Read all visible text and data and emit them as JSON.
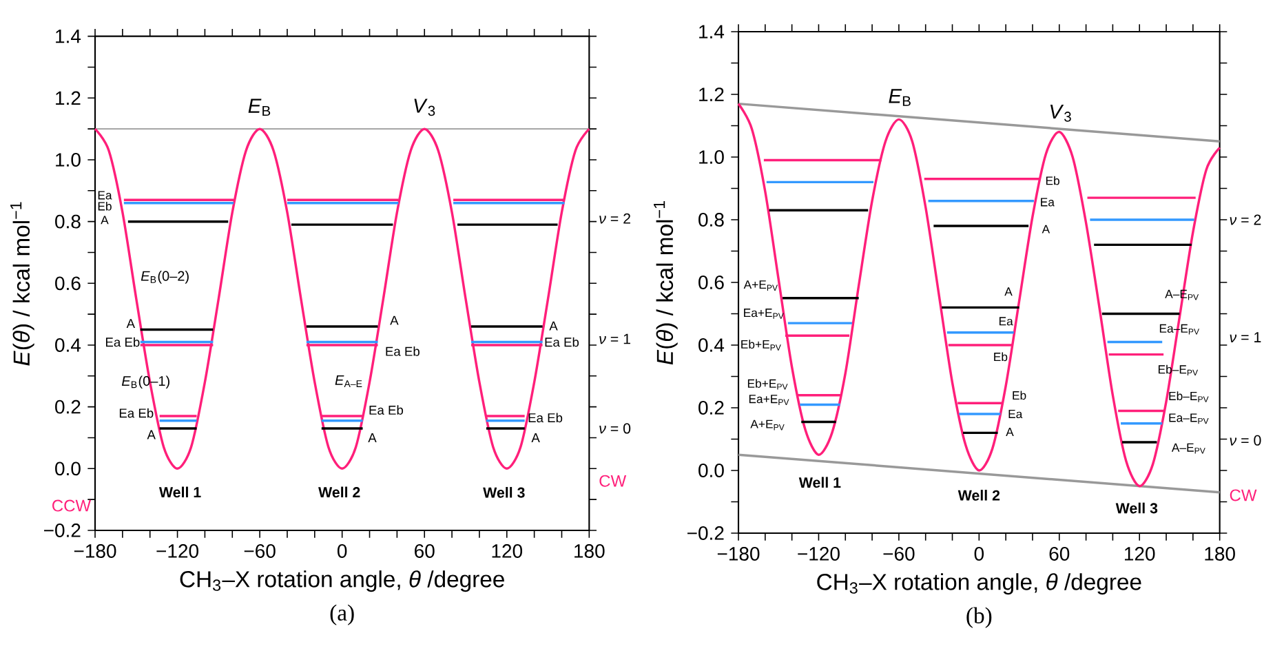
{
  "chart_data": [
    {
      "type": "line",
      "title": "(a)",
      "xlabel": "CH$_{3}$–X rotation angle, *θ* /degree",
      "ylabel": "*E*(*θ*) / kcal mol$^{−1}$",
      "marker": "none",
      "line_style": "solid",
      "xlim": [
        -180,
        180
      ],
      "ylim": [
        -0.2,
        1.4
      ],
      "xticks": [
        {
          "value": -180,
          "label": "−180"
        },
        {
          "value": -160,
          "label": null
        },
        {
          "value": -140,
          "label": null
        },
        {
          "value": -120,
          "label": "−120"
        },
        {
          "value": -100,
          "label": null
        },
        {
          "value": -80,
          "label": null
        },
        {
          "value": -60,
          "label": "−60"
        },
        {
          "value": -40,
          "label": null
        },
        {
          "value": -20,
          "label": null
        },
        0,
        {
          "value": 20,
          "label": null
        },
        {
          "value": 40,
          "label": null
        },
        60,
        {
          "value": 80,
          "label": null
        },
        {
          "value": 100,
          "label": null
        },
        120,
        {
          "value": 140,
          "label": null
        },
        {
          "value": 160,
          "label": null
        },
        180
      ],
      "yticks": [
        {
          "value": -0.2,
          "label": "−0.2"
        },
        {
          "value": -0.1,
          "label": null
        },
        {
          "value": 0,
          "label": "0.0"
        },
        {
          "value": 0.1,
          "label": null
        },
        0.2,
        {
          "value": 0.3,
          "label": null
        },
        0.4,
        {
          "value": 0.5,
          "label": null
        },
        0.6,
        {
          "value": 0.7,
          "label": null
        },
        0.8,
        {
          "value": 0.9,
          "label": null
        },
        {
          "value": 1,
          "label": "1.0"
        },
        {
          "value": 1.1,
          "label": null
        },
        1.2,
        {
          "value": 1.3,
          "label": null
        },
        1.4
      ],
      "ref_lines": [
        {
          "axis": "y",
          "value": 1.1,
          "color": "#999999"
        }
      ],
      "series": [
        {
          "color": "#ff1f7a",
          "x": [
            -180,
            -170,
            -160,
            -150,
            -140,
            -130,
            -120,
            -110,
            -100,
            -90,
            -80,
            -70,
            -60,
            -50,
            -40,
            -30,
            -20,
            -10,
            0,
            10,
            20,
            30,
            40,
            50,
            60,
            70,
            80,
            90,
            100,
            110,
            120,
            130,
            140,
            150,
            160,
            170,
            180
          ],
          "values": [
            1.1,
            1.03,
            0.83,
            0.55,
            0.28,
            0.07,
            0,
            0.07,
            0.28,
            0.55,
            0.83,
            1.03,
            1.1,
            1.03,
            0.83,
            0.55,
            0.28,
            0.07,
            0,
            0.07,
            0.28,
            0.55,
            0.83,
            1.03,
            1.1,
            1.03,
            0.83,
            0.55,
            0.28,
            0.07,
            0,
            0.07,
            0.28,
            0.55,
            0.83,
            1.03,
            1.1
          ]
        },
        {
          "color": "#3399ff",
          "x": [
            -159,
            -79
          ],
          "values": [
            0.86,
            0.86
          ]
        },
        {
          "color": "#ff1f7a",
          "x": [
            -159,
            -79
          ],
          "values": [
            0.87,
            0.87
          ]
        },
        {
          "color": "#000000",
          "x": [
            -156,
            -83
          ],
          "values": [
            0.8,
            0.8
          ]
        },
        {
          "color": "#3399ff",
          "x": [
            -40,
            41
          ],
          "values": [
            0.86,
            0.86
          ]
        },
        {
          "color": "#ff1f7a",
          "x": [
            -40,
            41
          ],
          "values": [
            0.87,
            0.87
          ]
        },
        {
          "color": "#000000",
          "x": [
            -37,
            37
          ],
          "values": [
            0.79,
            0.79
          ]
        },
        {
          "color": "#3399ff",
          "x": [
            81,
            162
          ],
          "values": [
            0.86,
            0.86
          ]
        },
        {
          "color": "#ff1f7a",
          "x": [
            81,
            162
          ],
          "values": [
            0.87,
            0.87
          ]
        },
        {
          "color": "#000000",
          "x": [
            84,
            157
          ],
          "values": [
            0.79,
            0.79
          ]
        },
        {
          "color": "#000000",
          "x": [
            -147,
            -94
          ],
          "values": [
            0.45,
            0.45
          ]
        },
        {
          "color": "#3399ff",
          "x": [
            -147,
            -94
          ],
          "values": [
            0.41,
            0.41
          ]
        },
        {
          "color": "#ff1f7a",
          "x": [
            -147,
            -94
          ],
          "values": [
            0.4,
            0.4
          ]
        },
        {
          "color": "#000000",
          "x": [
            -26,
            26
          ],
          "values": [
            0.46,
            0.46
          ]
        },
        {
          "color": "#3399ff",
          "x": [
            -26,
            26
          ],
          "values": [
            0.41,
            0.41
          ]
        },
        {
          "color": "#ff1f7a",
          "x": [
            -26,
            26
          ],
          "values": [
            0.4,
            0.4
          ]
        },
        {
          "color": "#000000",
          "x": [
            94,
            146
          ],
          "values": [
            0.46,
            0.46
          ]
        },
        {
          "color": "#3399ff",
          "x": [
            94,
            146
          ],
          "values": [
            0.41,
            0.41
          ]
        },
        {
          "color": "#ff1f7a",
          "x": [
            94,
            146
          ],
          "values": [
            0.4,
            0.4
          ]
        },
        {
          "color": "#ff1f7a",
          "x": [
            -133,
            -106
          ],
          "values": [
            0.17,
            0.17
          ]
        },
        {
          "color": "#3399ff",
          "x": [
            -133,
            -106
          ],
          "values": [
            0.155,
            0.155
          ]
        },
        {
          "color": "#000000",
          "x": [
            -133,
            -106
          ],
          "values": [
            0.13,
            0.13
          ]
        },
        {
          "color": "#ff1f7a",
          "x": [
            -15,
            15
          ],
          "values": [
            0.17,
            0.17
          ]
        },
        {
          "color": "#3399ff",
          "x": [
            -15,
            15
          ],
          "values": [
            0.155,
            0.155
          ]
        },
        {
          "color": "#000000",
          "x": [
            -15,
            15
          ],
          "values": [
            0.13,
            0.13
          ]
        },
        {
          "color": "#ff1f7a",
          "x": [
            105,
            133
          ],
          "values": [
            0.17,
            0.17
          ]
        },
        {
          "color": "#3399ff",
          "x": [
            105,
            133
          ],
          "values": [
            0.155,
            0.155
          ]
        },
        {
          "color": "#000000",
          "x": [
            105,
            133
          ],
          "values": [
            0.13,
            0.13
          ]
        }
      ],
      "annotations": [
        "*E*$_{B}$",
        "*V*$_{3}$",
        "Ea",
        "Eb",
        "A",
        "*E*$_{B}$(0–2)",
        "A",
        "Ea Eb",
        "*E*$_{B}$(0–1)",
        "Ea Eb",
        "A",
        "A",
        "Ea Eb",
        "*E*$_{A–E}$",
        "Ea Eb",
        "A",
        "A",
        "Ea Eb",
        "Ea Eb",
        "A",
        "*ν* = 2",
        "*ν* = 1",
        "*ν* = 0",
        "CW",
        "CCW",
        "**Well 1**",
        "**Well 2**",
        "**Well 3**"
      ]
    },
    {
      "type": "line",
      "title": "(b)",
      "xlabel": "CH$_{3}$–X rotation angle, *θ* /degree",
      "ylabel": "*E*(*θ*) / kcal mol$^{−1}$",
      "marker": "none",
      "line_style": "solid",
      "xlim": [
        -180,
        180
      ],
      "ylim": [
        -0.2,
        1.4
      ],
      "xticks": [
        {
          "value": -180,
          "label": "−180"
        },
        {
          "value": -160,
          "label": null
        },
        {
          "value": -140,
          "label": null
        },
        {
          "value": -120,
          "label": "−120"
        },
        {
          "value": -100,
          "label": null
        },
        {
          "value": -80,
          "label": null
        },
        {
          "value": -60,
          "label": "−60"
        },
        {
          "value": -40,
          "label": null
        },
        {
          "value": -20,
          "label": null
        },
        0,
        {
          "value": 20,
          "label": null
        },
        {
          "value": 40,
          "label": null
        },
        60,
        {
          "value": 80,
          "label": null
        },
        {
          "value": 100,
          "label": null
        },
        120,
        {
          "value": 140,
          "label": null
        },
        {
          "value": 160,
          "label": null
        },
        180
      ],
      "yticks": [
        {
          "value": -0.2,
          "label": "−0.2"
        },
        {
          "value": -0.1,
          "label": null
        },
        {
          "value": 0,
          "label": "0.0"
        },
        {
          "value": 0.1,
          "label": null
        },
        0.2,
        {
          "value": 0.3,
          "label": null
        },
        0.4,
        {
          "value": 0.5,
          "label": null
        },
        0.6,
        {
          "value": 0.7,
          "label": null
        },
        0.8,
        {
          "value": 0.9,
          "label": null
        },
        {
          "value": 1,
          "label": "1.0"
        },
        {
          "value": 1.1,
          "label": null
        },
        1.2,
        {
          "value": 1.3,
          "label": null
        },
        1.4
      ],
      "series": [
        {
          "color": "#999999",
          "x": [
            -180,
            180
          ],
          "values": [
            1.17,
            1.05
          ]
        },
        {
          "color": "#999999",
          "x": [
            -180,
            180
          ],
          "values": [
            0.05,
            -0.07
          ]
        },
        {
          "color": "#ff1f7a",
          "x": [
            -180,
            -170,
            -160,
            -150,
            -140,
            -130,
            -120,
            -110,
            -100,
            -90,
            -80,
            -70,
            -60,
            -50,
            -40,
            -30,
            -20,
            -10,
            0,
            10,
            20,
            30,
            40,
            50,
            60,
            70,
            80,
            90,
            100,
            110,
            120,
            130,
            140,
            150,
            160,
            170,
            180
          ],
          "values": [
            1.17,
            1.09,
            0.89,
            0.61,
            0.33,
            0.13,
            0.05,
            0.12,
            0.31,
            0.59,
            0.86,
            1.05,
            1.12,
            1.05,
            0.84,
            0.56,
            0.28,
            0.08,
            0,
            0.07,
            0.27,
            0.54,
            0.81,
            1.01,
            1.08,
            1,
            0.79,
            0.52,
            0.24,
            0.03,
            -0.05,
            0.02,
            0.22,
            0.49,
            0.76,
            0.96,
            1.03
          ]
        },
        {
          "color": "#ff1f7a",
          "x": [
            -161,
            -73
          ],
          "values": [
            0.99,
            0.99
          ]
        },
        {
          "color": "#3399ff",
          "x": [
            -159,
            -79
          ],
          "values": [
            0.92,
            0.92
          ]
        },
        {
          "color": "#000000",
          "x": [
            -157,
            -83
          ],
          "values": [
            0.83,
            0.83
          ]
        },
        {
          "color": "#ff1f7a",
          "x": [
            -41,
            45
          ],
          "values": [
            0.93,
            0.93
          ]
        },
        {
          "color": "#3399ff",
          "x": [
            -38,
            41
          ],
          "values": [
            0.86,
            0.86
          ]
        },
        {
          "color": "#000000",
          "x": [
            -34,
            37
          ],
          "values": [
            0.78,
            0.78
          ]
        },
        {
          "color": "#ff1f7a",
          "x": [
            81,
            162
          ],
          "values": [
            0.87,
            0.87
          ]
        },
        {
          "color": "#3399ff",
          "x": [
            83,
            161
          ],
          "values": [
            0.8,
            0.8
          ]
        },
        {
          "color": "#000000",
          "x": [
            86,
            159
          ],
          "values": [
            0.72,
            0.72
          ]
        },
        {
          "color": "#000000",
          "x": [
            -147,
            -90
          ],
          "values": [
            0.55,
            0.55
          ]
        },
        {
          "color": "#3399ff",
          "x": [
            -143,
            -95
          ],
          "values": [
            0.47,
            0.47
          ]
        },
        {
          "color": "#ff1f7a",
          "x": [
            -145,
            -97
          ],
          "values": [
            0.43,
            0.43
          ]
        },
        {
          "color": "#000000",
          "x": [
            -28,
            30
          ],
          "values": [
            0.52,
            0.52
          ]
        },
        {
          "color": "#3399ff",
          "x": [
            -24,
            26
          ],
          "values": [
            0.44,
            0.44
          ]
        },
        {
          "color": "#ff1f7a",
          "x": [
            -23,
            25
          ],
          "values": [
            0.4,
            0.4
          ]
        },
        {
          "color": "#000000",
          "x": [
            92,
            150
          ],
          "values": [
            0.5,
            0.5
          ]
        },
        {
          "color": "#3399ff",
          "x": [
            96,
            137
          ],
          "values": [
            0.41,
            0.41
          ]
        },
        {
          "color": "#ff1f7a",
          "x": [
            97,
            138
          ],
          "values": [
            0.37,
            0.37
          ]
        },
        {
          "color": "#ff1f7a",
          "x": [
            -136,
            -103
          ],
          "values": [
            0.24,
            0.24
          ]
        },
        {
          "color": "#3399ff",
          "x": [
            -134,
            -104
          ],
          "values": [
            0.21,
            0.21
          ]
        },
        {
          "color": "#000000",
          "x": [
            -133,
            -107
          ],
          "values": [
            0.155,
            0.155
          ]
        },
        {
          "color": "#ff1f7a",
          "x": [
            -16,
            17
          ],
          "values": [
            0.215,
            0.215
          ]
        },
        {
          "color": "#3399ff",
          "x": [
            -15,
            16
          ],
          "values": [
            0.18,
            0.18
          ]
        },
        {
          "color": "#000000",
          "x": [
            -12,
            14
          ],
          "values": [
            0.12,
            0.12
          ]
        },
        {
          "color": "#ff1f7a",
          "x": [
            104,
            139
          ],
          "values": [
            0.19,
            0.19
          ]
        },
        {
          "color": "#3399ff",
          "x": [
            106,
            137
          ],
          "values": [
            0.15,
            0.15
          ]
        },
        {
          "color": "#000000",
          "x": [
            107,
            133
          ],
          "values": [
            0.09,
            0.09
          ]
        }
      ],
      "annotations": [
        "*E*$_{B}$",
        "*V*$_{3}$",
        "Eb",
        "Ea",
        "A",
        "A",
        "Ea",
        "Eb",
        "Eb",
        "Ea",
        "A",
        "A+E$_{PV}$",
        "Ea+E$_{PV}$",
        "Eb+E$_{PV}$",
        "Eb+E$_{PV}$",
        "Ea+E$_{PV}$",
        "A+E$_{PV}$",
        "A–E$_{PV}$",
        "Ea–E$_{PV}$",
        "Eb–E$_{PV}$",
        "Eb–E$_{PV}$",
        "Ea–E$_{PV}$",
        "A–E$_{PV}$",
        "*ν* = 2",
        "*ν* = 1",
        "*ν* = 0",
        "CW",
        "**Well 1**",
        "**Well 2**",
        "**Well 3**"
      ]
    }
  ]
}
